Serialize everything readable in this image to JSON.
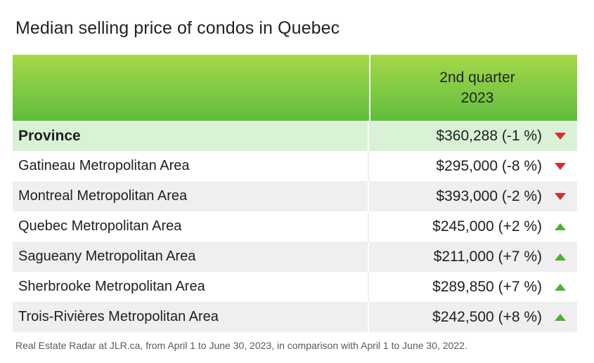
{
  "colors": {
    "header_top": "#a6d84a",
    "header_bottom": "#5fbd3e",
    "province_bg": "#d9f2d6",
    "down": "#d92b2b",
    "up": "#4caf32"
  },
  "title": "Median selling price of condos in Quebec",
  "header": {
    "line1": "2nd quarter",
    "line2": "2023"
  },
  "chart_data": {
    "type": "table",
    "title": "Median selling price of condos in Quebec",
    "columns": [
      "",
      "2nd quarter 2023"
    ],
    "rows": [
      {
        "name": "Province",
        "value": "$360,288 (-1 %)",
        "price": 360288,
        "change_pct": -1,
        "trend": "down",
        "bold": true
      },
      {
        "name": "Gatineau Metropolitan Area",
        "value": "$295,000 (-8 %)",
        "price": 295000,
        "change_pct": -8,
        "trend": "down"
      },
      {
        "name": "Montreal Metropolitan Area",
        "value": "$393,000 (-2 %)",
        "price": 393000,
        "change_pct": -2,
        "trend": "down"
      },
      {
        "name": "Quebec Metropolitan Area",
        "value": "$245,000 (+2 %)",
        "price": 245000,
        "change_pct": 2,
        "trend": "up"
      },
      {
        "name": "Sagueany Metropolitan Area",
        "value": "$211,000 (+7 %)",
        "price": 211000,
        "change_pct": 7,
        "trend": "up"
      },
      {
        "name": "Sherbrooke Metropolitan Area",
        "value": "$289,850 (+7 %)",
        "price": 289850,
        "change_pct": 7,
        "trend": "up"
      },
      {
        "name": "Trois-Rivières Metropolitan Area",
        "value": "$242,500 (+8 %)",
        "price": 242500,
        "change_pct": 8,
        "trend": "up"
      }
    ]
  },
  "footnote": "Real Estate Radar at JLR.ca, from April 1 to June 30, 2023, in comparison with April 1 to June 30, 2022."
}
